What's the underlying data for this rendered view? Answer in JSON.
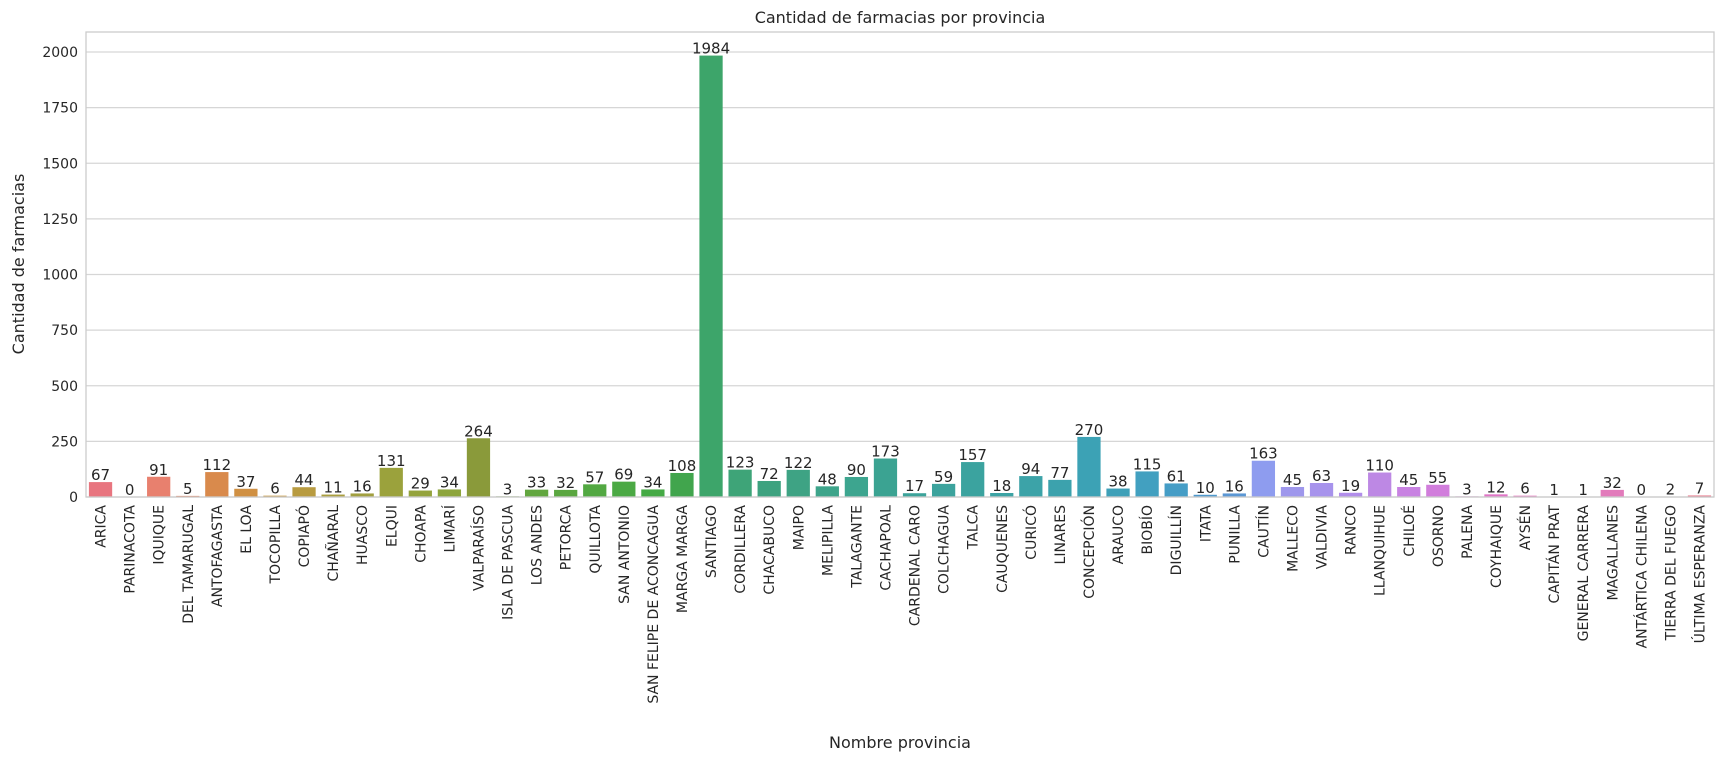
{
  "chart_data": {
    "type": "bar",
    "title": "Cantidad de farmacias por provincia",
    "xlabel": "Nombre provincia",
    "ylabel": "Cantidad de farmacias",
    "ylim": [
      0,
      2090
    ],
    "yticks": [
      0,
      250,
      500,
      750,
      1000,
      1250,
      1500,
      1750,
      2000
    ],
    "grid": true,
    "categories": [
      "ARICA",
      "PARINACOTA",
      "IQUIQUE",
      "DEL TAMARUGAL",
      "ANTOFAGASTA",
      "EL LOA",
      "TOCOPILLA",
      "COPIAPÓ",
      "CHAÑARAL",
      "HUASCO",
      "ELQUI",
      "CHOAPA",
      "LIMARÍ",
      "VALPARAÍSO",
      "ISLA DE PASCUA",
      "LOS ANDES",
      "PETORCA",
      "QUILLOTA",
      "SAN ANTONIO",
      "SAN FELIPE DE ACONCAGUA",
      "MARGA MARGA",
      "SANTIAGO",
      "CORDILLERA",
      "CHACABUCO",
      "MAIPO",
      "MELIPILLA",
      "TALAGANTE",
      "CACHAPOAL",
      "CARDENAL CARO",
      "COLCHAGUA",
      "TALCA",
      "CAUQUENES",
      "CURICÓ",
      "LINARES",
      "CONCEPCIÓN",
      "ARAUCO",
      "BIOBÍO",
      "DIGUILLÍN",
      "ITATA",
      "PUNILLA",
      "CAUTÍN",
      "MALLECO",
      "VALDIVIA",
      "RANCO",
      "LLANQUIHUE",
      "CHILOÉ",
      "OSORNO",
      "PALENA",
      "COYHAIQUE",
      "AYSÉN",
      "CAPITÁN PRAT",
      "GENERAL CARRERA",
      "MAGALLANES",
      "ANTÁRTICA CHILENA",
      "TIERRA DEL FUEGO",
      "ÚLTIMA ESPERANZA"
    ],
    "values": [
      67,
      0,
      91,
      5,
      112,
      37,
      6,
      44,
      11,
      16,
      131,
      29,
      34,
      264,
      3,
      33,
      32,
      57,
      69,
      34,
      108,
      1984,
      123,
      72,
      122,
      48,
      90,
      173,
      17,
      59,
      157,
      18,
      94,
      77,
      270,
      38,
      115,
      61,
      10,
      16,
      163,
      45,
      63,
      19,
      110,
      45,
      55,
      3,
      12,
      6,
      1,
      1,
      32,
      0,
      2,
      7
    ],
    "colors": [
      "#e8757f",
      "#e87d70",
      "#e8806e",
      "#e2845f",
      "#d98a4c",
      "#d09043",
      "#c5963d",
      "#b89b40",
      "#aa9e3f",
      "#a19f3f",
      "#9ba23c",
      "#94a33c",
      "#8da53c",
      "#8a9a3a",
      "#6aa43d",
      "#62a63f",
      "#5aa640",
      "#52a842",
      "#4ba944",
      "#45aa45",
      "#41a54d",
      "#3da56a",
      "#3ea478",
      "#3da27f",
      "#3ea384",
      "#3da48a",
      "#3da58f",
      "#3ba392",
      "#3ca39a",
      "#3ca39d",
      "#3ba39f",
      "#3ca3a4",
      "#3ca3a8",
      "#3ca2ad",
      "#3ca2b5",
      "#3ea0b8",
      "#42a0c0",
      "#459dc6",
      "#4e98cc",
      "#5b97d4",
      "#8e9cef",
      "#9e97ec",
      "#a793ec",
      "#b18dea",
      "#bd88e4",
      "#c882e2",
      "#d17ddc",
      "#da78d4",
      "#e075c6",
      "#e477be",
      "#e779b2",
      "#e87aa9",
      "#e27bbb",
      "#e87b9d",
      "#e97b95",
      "#e97a8c"
    ]
  }
}
